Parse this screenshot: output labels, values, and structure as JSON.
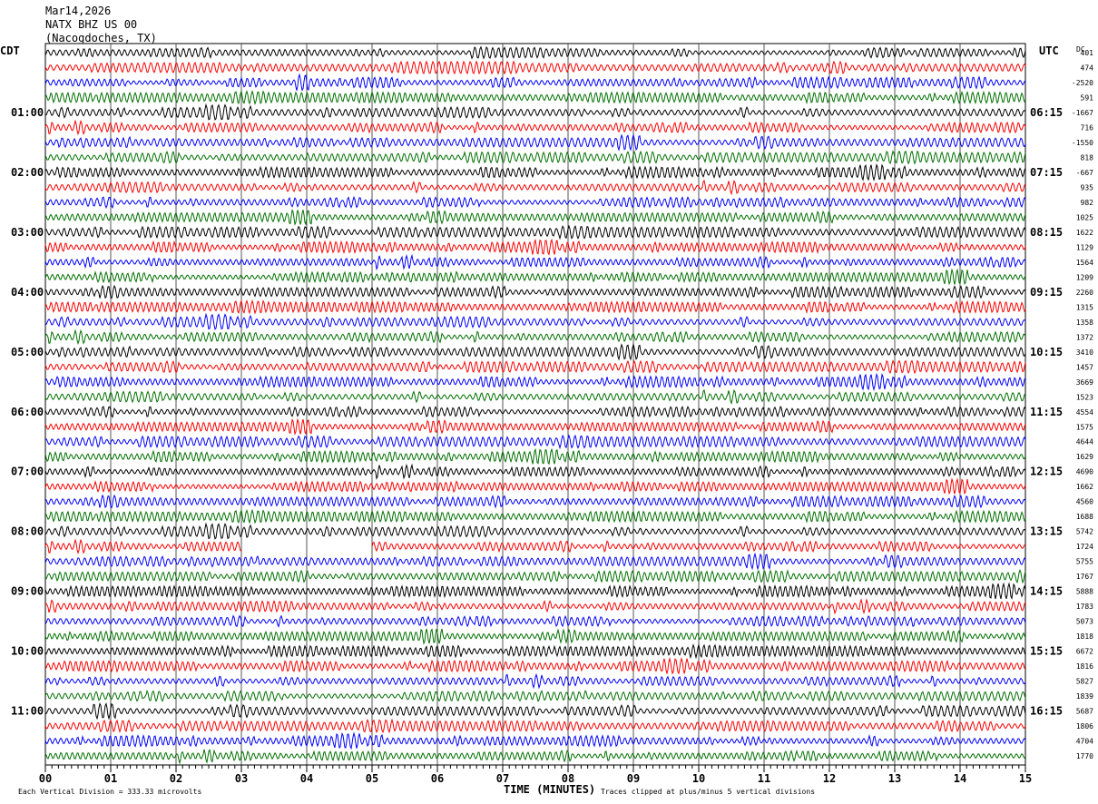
{
  "header": {
    "date": "Mar14,2026",
    "station": "NATX BHZ US 00",
    "location": "(Nacogdoches, TX)"
  },
  "chart_data": {
    "type": "line",
    "title": "NATX BHZ US 00 helicorder",
    "xlabel": "TIME (MINUTES)",
    "xlim": [
      0,
      15
    ],
    "x_ticks": [
      "00",
      "01",
      "02",
      "03",
      "04",
      "05",
      "06",
      "07",
      "08",
      "09",
      "10",
      "11",
      "12",
      "13",
      "14",
      "15"
    ],
    "left_axis_label": "CDT",
    "right_axis_label": "UTC",
    "dc_label": "DC",
    "left_hour_labels": [
      "01:00",
      "02:00",
      "03:00",
      "04:00",
      "05:00",
      "06:00",
      "07:00",
      "08:00",
      "09:00",
      "10:00",
      "11:00"
    ],
    "right_hour_labels": [
      "06:15",
      "07:15",
      "08:15",
      "09:15",
      "10:15",
      "11:15",
      "12:15",
      "13:15",
      "14:15",
      "15:15",
      "16:15"
    ],
    "traces_per_hour": 4,
    "trace_count": 48,
    "trace_colors": [
      "#000000",
      "#ff0000",
      "#0000ff",
      "#007000"
    ],
    "dc_offsets": [
      "401",
      "474",
      "-2520",
      "591",
      "-1667",
      "716",
      "-1550",
      "818",
      "-667",
      "935",
      "982",
      "1025",
      "1622",
      "1129",
      "1564",
      "1209",
      "2260",
      "1315",
      "1358",
      "1372",
      "3410",
      "1457",
      "3669",
      "1523",
      "4554",
      "1575",
      "4644",
      "1629",
      "4690",
      "1662",
      "4560",
      "1688",
      "5742",
      "1724",
      "5755",
      "1767",
      "5888",
      "1783",
      "5073",
      "1818",
      "6672",
      "1816",
      "5827",
      "1839",
      "5687",
      "1806",
      "4704",
      "1770"
    ],
    "gaps": [
      {
        "trace": 33,
        "start_min": 3.0,
        "end_min": 5.0
      }
    ],
    "footer_scale": "Each Vertical Division =  333.33 microvolts",
    "footer_clip": "Traces clipped at plus/minus 5 vertical divisions"
  }
}
